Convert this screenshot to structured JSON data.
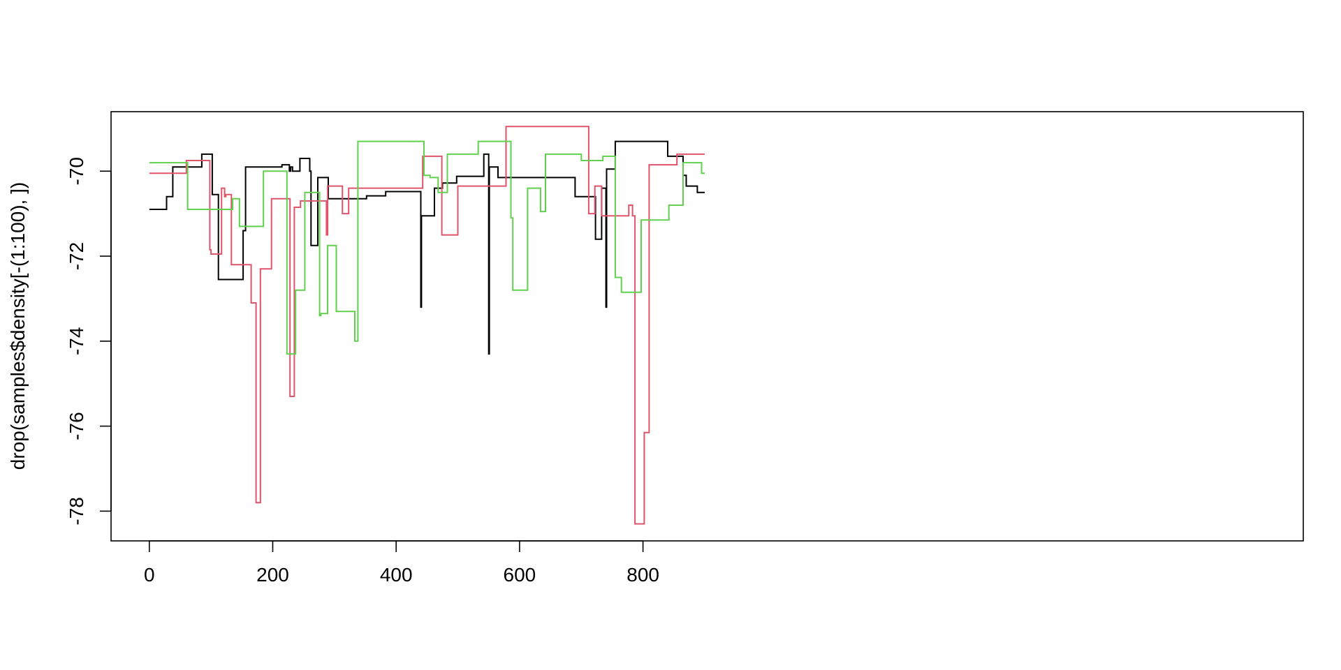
{
  "chart_data": {
    "type": "line",
    "title": "",
    "xlabel": "",
    "ylabel": "drop(samples$density[-(1:100), ])",
    "xlim": [
      -62,
      1870
    ],
    "ylim": [
      -78.7,
      -68.6
    ],
    "xticks": [
      0,
      200,
      400,
      600,
      800
    ],
    "yticks": [
      -78,
      -76,
      -74,
      -72,
      -70
    ],
    "xtick_labels": [
      "0",
      "200",
      "400",
      "600",
      "800"
    ],
    "ytick_labels": [
      "-78",
      "-76",
      "-74",
      "-72",
      "-70"
    ],
    "grid": false,
    "legend": "none",
    "series": [
      {
        "color": "#000000",
        "points": [
          [
            0,
            -70.9
          ],
          [
            28,
            -70.9
          ],
          [
            28,
            -70.6
          ],
          [
            38,
            -70.6
          ],
          [
            38,
            -69.9
          ],
          [
            85,
            -69.9
          ],
          [
            85,
            -69.6
          ],
          [
            102,
            -69.6
          ],
          [
            102,
            -70.55
          ],
          [
            112,
            -70.55
          ],
          [
            112,
            -72.55
          ],
          [
            152,
            -72.55
          ],
          [
            152,
            -71.4
          ],
          [
            156,
            -71.4
          ],
          [
            156,
            -69.9
          ],
          [
            215,
            -69.9
          ],
          [
            215,
            -69.85
          ],
          [
            227,
            -69.85
          ],
          [
            227,
            -70.0
          ],
          [
            229,
            -70.0
          ],
          [
            229,
            -69.9
          ],
          [
            232,
            -69.9
          ],
          [
            232,
            -70.0
          ],
          [
            244,
            -70.0
          ],
          [
            244,
            -69.7
          ],
          [
            260,
            -69.7
          ],
          [
            260,
            -70.0
          ],
          [
            262,
            -70.0
          ],
          [
            262,
            -71.75
          ],
          [
            273,
            -71.75
          ],
          [
            273,
            -70.15
          ],
          [
            290,
            -70.15
          ],
          [
            290,
            -70.65
          ],
          [
            352,
            -70.65
          ],
          [
            352,
            -70.58
          ],
          [
            383,
            -70.58
          ],
          [
            383,
            -70.48
          ],
          [
            440,
            -70.48
          ],
          [
            440,
            -73.2
          ],
          [
            441,
            -73.2
          ],
          [
            441,
            -71.05
          ],
          [
            462,
            -71.05
          ],
          [
            462,
            -70.4
          ],
          [
            475,
            -70.4
          ],
          [
            475,
            -70.28
          ],
          [
            498,
            -70.28
          ],
          [
            498,
            -70.12
          ],
          [
            542,
            -70.12
          ],
          [
            542,
            -69.6
          ],
          [
            550,
            -69.6
          ],
          [
            550,
            -74.3
          ],
          [
            551,
            -74.3
          ],
          [
            551,
            -69.9
          ],
          [
            565,
            -69.9
          ],
          [
            565,
            -70.15
          ],
          [
            690,
            -70.15
          ],
          [
            690,
            -70.6
          ],
          [
            723,
            -70.6
          ],
          [
            723,
            -71.6
          ],
          [
            733,
            -71.6
          ],
          [
            733,
            -70.4
          ],
          [
            740,
            -70.4
          ],
          [
            740,
            -73.2
          ],
          [
            741,
            -73.2
          ],
          [
            741,
            -69.95
          ],
          [
            755,
            -69.95
          ],
          [
            755,
            -69.3
          ],
          [
            840,
            -69.3
          ],
          [
            840,
            -69.65
          ],
          [
            865,
            -69.65
          ],
          [
            865,
            -70.1
          ],
          [
            870,
            -70.1
          ],
          [
            870,
            -70.35
          ],
          [
            888,
            -70.35
          ],
          [
            888,
            -70.5
          ],
          [
            900,
            -70.5
          ]
        ]
      },
      {
        "color": "#df536b",
        "points": [
          [
            0,
            -70.05
          ],
          [
            60,
            -70.05
          ],
          [
            60,
            -69.75
          ],
          [
            98,
            -69.75
          ],
          [
            98,
            -71.85
          ],
          [
            100,
            -71.85
          ],
          [
            100,
            -71.95
          ],
          [
            117,
            -71.95
          ],
          [
            117,
            -70.4
          ],
          [
            122,
            -70.4
          ],
          [
            122,
            -70.6
          ],
          [
            124,
            -70.6
          ],
          [
            124,
            -70.55
          ],
          [
            133,
            -70.55
          ],
          [
            133,
            -72.2
          ],
          [
            165,
            -72.2
          ],
          [
            165,
            -73.1
          ],
          [
            173,
            -73.1
          ],
          [
            173,
            -77.8
          ],
          [
            180,
            -77.8
          ],
          [
            180,
            -72.3
          ],
          [
            198,
            -72.3
          ],
          [
            198,
            -70.65
          ],
          [
            228,
            -70.65
          ],
          [
            228,
            -75.3
          ],
          [
            235,
            -75.3
          ],
          [
            235,
            -70.85
          ],
          [
            245,
            -70.85
          ],
          [
            245,
            -70.7
          ],
          [
            287,
            -70.7
          ],
          [
            287,
            -71.5
          ],
          [
            289,
            -71.5
          ],
          [
            289,
            -70.35
          ],
          [
            313,
            -70.35
          ],
          [
            313,
            -71.0
          ],
          [
            323,
            -71.0
          ],
          [
            323,
            -70.4
          ],
          [
            443,
            -70.4
          ],
          [
            443,
            -69.65
          ],
          [
            474,
            -69.65
          ],
          [
            474,
            -71.5
          ],
          [
            500,
            -71.5
          ],
          [
            500,
            -70.35
          ],
          [
            578,
            -70.35
          ],
          [
            578,
            -68.95
          ],
          [
            712,
            -68.95
          ],
          [
            712,
            -71.0
          ],
          [
            722,
            -71.0
          ],
          [
            722,
            -70.35
          ],
          [
            733,
            -70.35
          ],
          [
            733,
            -71.05
          ],
          [
            777,
            -71.05
          ],
          [
            777,
            -70.8
          ],
          [
            783,
            -70.8
          ],
          [
            783,
            -71.05
          ],
          [
            787,
            -71.05
          ],
          [
            787,
            -78.3
          ],
          [
            802,
            -78.3
          ],
          [
            802,
            -76.15
          ],
          [
            810,
            -76.15
          ],
          [
            810,
            -69.85
          ],
          [
            855,
            -69.85
          ],
          [
            855,
            -69.6
          ],
          [
            900,
            -69.6
          ]
        ]
      },
      {
        "color": "#61d04f",
        "points": [
          [
            0,
            -69.8
          ],
          [
            62,
            -69.8
          ],
          [
            62,
            -70.9
          ],
          [
            135,
            -70.9
          ],
          [
            135,
            -70.65
          ],
          [
            146,
            -70.65
          ],
          [
            146,
            -71.3
          ],
          [
            185,
            -71.3
          ],
          [
            185,
            -70.0
          ],
          [
            223,
            -70.0
          ],
          [
            223,
            -74.3
          ],
          [
            237,
            -74.3
          ],
          [
            237,
            -72.8
          ],
          [
            252,
            -72.8
          ],
          [
            252,
            -70.5
          ],
          [
            276,
            -70.5
          ],
          [
            276,
            -73.4
          ],
          [
            278,
            -73.4
          ],
          [
            278,
            -73.35
          ],
          [
            289,
            -73.35
          ],
          [
            289,
            -71.75
          ],
          [
            303,
            -71.75
          ],
          [
            303,
            -73.3
          ],
          [
            333,
            -73.3
          ],
          [
            333,
            -74.0
          ],
          [
            338,
            -74.0
          ],
          [
            338,
            -69.3
          ],
          [
            445,
            -69.3
          ],
          [
            445,
            -70.1
          ],
          [
            455,
            -70.1
          ],
          [
            455,
            -70.15
          ],
          [
            468,
            -70.15
          ],
          [
            468,
            -70.5
          ],
          [
            483,
            -70.5
          ],
          [
            483,
            -69.6
          ],
          [
            533,
            -69.6
          ],
          [
            533,
            -69.3
          ],
          [
            586,
            -69.3
          ],
          [
            586,
            -71.1
          ],
          [
            589,
            -71.1
          ],
          [
            589,
            -72.8
          ],
          [
            613,
            -72.8
          ],
          [
            613,
            -70.4
          ],
          [
            634,
            -70.4
          ],
          [
            634,
            -70.95
          ],
          [
            642,
            -70.95
          ],
          [
            642,
            -69.6
          ],
          [
            700,
            -69.6
          ],
          [
            700,
            -69.75
          ],
          [
            735,
            -69.75
          ],
          [
            735,
            -69.65
          ],
          [
            755,
            -69.65
          ],
          [
            755,
            -72.5
          ],
          [
            765,
            -72.5
          ],
          [
            765,
            -72.85
          ],
          [
            797,
            -72.85
          ],
          [
            797,
            -71.15
          ],
          [
            842,
            -71.15
          ],
          [
            842,
            -70.8
          ],
          [
            865,
            -70.8
          ],
          [
            865,
            -69.8
          ],
          [
            895,
            -69.8
          ],
          [
            895,
            -70.05
          ],
          [
            900,
            -70.05
          ]
        ]
      }
    ]
  }
}
